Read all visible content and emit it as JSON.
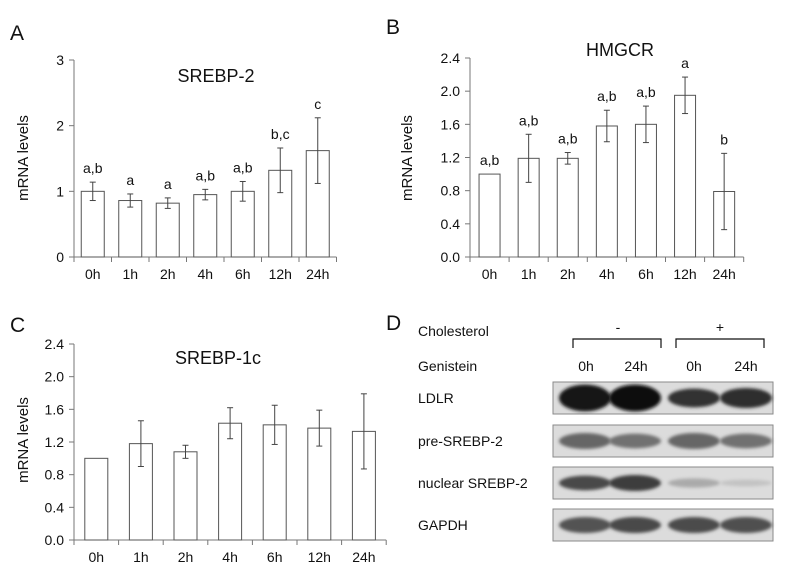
{
  "chart_data": [
    {
      "type": "bar",
      "panel": "A",
      "title": "SREBP-2",
      "ylabel": "mRNA levels",
      "xlabel": "",
      "categories": [
        "0h",
        "1h",
        "2h",
        "4h",
        "6h",
        "12h",
        "24h"
      ],
      "values": [
        1.0,
        0.86,
        0.82,
        0.95,
        1.0,
        1.32,
        1.62
      ],
      "errors": [
        0.14,
        0.1,
        0.08,
        0.08,
        0.15,
        0.34,
        0.5
      ],
      "labels": [
        "a,b",
        "a",
        "a",
        "a,b",
        "a,b",
        "b,c",
        "c"
      ],
      "ylim": [
        0,
        3
      ],
      "yticks": [
        "0",
        "1",
        "2",
        "3"
      ],
      "grid": false
    },
    {
      "type": "bar",
      "panel": "B",
      "title": "HMGCR",
      "ylabel": "mRNA levels",
      "xlabel": "",
      "categories": [
        "0h",
        "1h",
        "2h",
        "4h",
        "6h",
        "12h",
        "24h"
      ],
      "values": [
        1.0,
        1.19,
        1.19,
        1.58,
        1.6,
        1.95,
        0.79
      ],
      "errors": [
        0,
        0.29,
        0.07,
        0.19,
        0.22,
        0.22,
        0.46
      ],
      "labels": [
        "a,b",
        "a,b",
        "a,b",
        "a,b",
        "a,b",
        "a",
        "b"
      ],
      "ylim": [
        0,
        2.4
      ],
      "yticks": [
        "0.0",
        "0.4",
        "0.8",
        "1.2",
        "1.6",
        "2.0",
        "2.4"
      ],
      "grid": false
    },
    {
      "type": "bar",
      "panel": "C",
      "title": "SREBP-1c",
      "ylabel": "mRNA levels",
      "xlabel": "",
      "categories": [
        "0h",
        "1h",
        "2h",
        "4h",
        "6h",
        "12h",
        "24h"
      ],
      "values": [
        1.0,
        1.18,
        1.08,
        1.43,
        1.41,
        1.37,
        1.33
      ],
      "errors": [
        0,
        0.28,
        0.08,
        0.19,
        0.24,
        0.22,
        0.46
      ],
      "labels": [
        "",
        "",
        "",
        "",
        "",
        "",
        ""
      ],
      "ylim": [
        0,
        2.4
      ],
      "yticks": [
        "0.0",
        "0.4",
        "0.8",
        "1.2",
        "1.6",
        "2.0",
        "2.4"
      ],
      "grid": false
    }
  ],
  "blot": {
    "panel": "D",
    "header": {
      "cholesterol_label": "Cholesterol",
      "minus": "-",
      "plus": "+",
      "genistein_label": "Genistein",
      "lanes": [
        "0h",
        "24h",
        "0h",
        "24h"
      ]
    },
    "rows": [
      {
        "label": "LDLR",
        "intensity": [
          0.95,
          1.0,
          0.8,
          0.82
        ],
        "thickness": [
          1.0,
          1.0,
          0.7,
          0.75
        ]
      },
      {
        "label": "pre-SREBP-2",
        "intensity": [
          0.55,
          0.5,
          0.55,
          0.5
        ],
        "thickness": [
          0.6,
          0.55,
          0.6,
          0.55
        ]
      },
      {
        "label": "nuclear SREBP-2",
        "intensity": [
          0.7,
          0.75,
          0.22,
          0.1
        ],
        "thickness": [
          0.55,
          0.6,
          0.35,
          0.25
        ]
      },
      {
        "label": "GAPDH",
        "intensity": [
          0.65,
          0.7,
          0.68,
          0.66
        ],
        "thickness": [
          0.6,
          0.6,
          0.6,
          0.6
        ]
      }
    ]
  }
}
